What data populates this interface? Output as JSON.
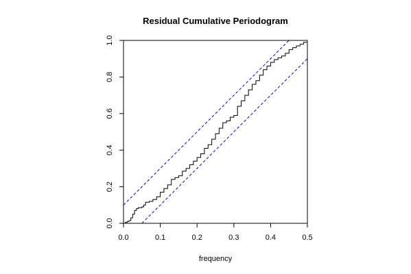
{
  "chart_data": {
    "type": "line",
    "title": "Residual Cumulative Periodogram",
    "xlabel": "frequency",
    "ylabel": "",
    "xlim": [
      0.0,
      0.5
    ],
    "ylim": [
      0.0,
      1.0
    ],
    "x_ticks": [
      "0.0",
      "0.1",
      "0.2",
      "0.3",
      "0.4",
      "0.5"
    ],
    "y_ticks": [
      "0.0",
      "0.2",
      "0.4",
      "0.6",
      "0.8",
      "1.0"
    ],
    "grid": false,
    "legend": "none",
    "series": [
      {
        "style": "step",
        "color": "#000000",
        "points": [
          [
            0.0,
            0.0
          ],
          [
            0.005,
            0.005
          ],
          [
            0.01,
            0.01
          ],
          [
            0.015,
            0.015
          ],
          [
            0.02,
            0.03
          ],
          [
            0.025,
            0.05
          ],
          [
            0.03,
            0.07
          ],
          [
            0.035,
            0.08
          ],
          [
            0.04,
            0.085
          ],
          [
            0.05,
            0.09
          ],
          [
            0.055,
            0.1
          ],
          [
            0.06,
            0.115
          ],
          [
            0.07,
            0.12
          ],
          [
            0.08,
            0.13
          ],
          [
            0.09,
            0.145
          ],
          [
            0.1,
            0.17
          ],
          [
            0.11,
            0.19
          ],
          [
            0.12,
            0.21
          ],
          [
            0.13,
            0.24
          ],
          [
            0.14,
            0.25
          ],
          [
            0.15,
            0.26
          ],
          [
            0.16,
            0.285
          ],
          [
            0.17,
            0.3
          ],
          [
            0.18,
            0.32
          ],
          [
            0.19,
            0.34
          ],
          [
            0.2,
            0.36
          ],
          [
            0.21,
            0.38
          ],
          [
            0.22,
            0.41
          ],
          [
            0.23,
            0.43
          ],
          [
            0.24,
            0.46
          ],
          [
            0.25,
            0.49
          ],
          [
            0.26,
            0.52
          ],
          [
            0.27,
            0.55
          ],
          [
            0.28,
            0.56
          ],
          [
            0.29,
            0.58
          ],
          [
            0.3,
            0.59
          ],
          [
            0.31,
            0.64
          ],
          [
            0.32,
            0.67
          ],
          [
            0.33,
            0.7
          ],
          [
            0.34,
            0.73
          ],
          [
            0.35,
            0.76
          ],
          [
            0.36,
            0.78
          ],
          [
            0.37,
            0.81
          ],
          [
            0.38,
            0.84
          ],
          [
            0.39,
            0.86
          ],
          [
            0.4,
            0.88
          ],
          [
            0.41,
            0.895
          ],
          [
            0.42,
            0.905
          ],
          [
            0.43,
            0.915
          ],
          [
            0.44,
            0.93
          ],
          [
            0.45,
            0.95
          ],
          [
            0.46,
            0.96
          ],
          [
            0.47,
            0.97
          ],
          [
            0.48,
            0.98
          ],
          [
            0.49,
            0.99
          ],
          [
            0.5,
            1.0
          ]
        ]
      }
    ],
    "bounds": [
      {
        "style": "dashed",
        "color": "#0000ff",
        "points": [
          [
            0.0,
            0.1
          ],
          [
            0.45,
            1.0
          ]
        ]
      },
      {
        "style": "dashed",
        "color": "#0000ff",
        "points": [
          [
            0.05,
            0.0
          ],
          [
            0.5,
            0.9
          ]
        ]
      }
    ]
  }
}
